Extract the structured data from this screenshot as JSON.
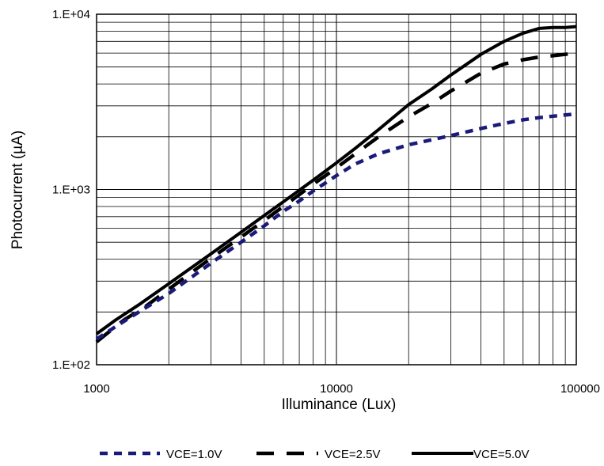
{
  "chart_data": {
    "type": "line",
    "xlabel": "Illuminance (Lux)",
    "ylabel": "Photocurrent (µA)",
    "x_scale": "log",
    "y_scale": "log",
    "xlim": [
      1000,
      100000
    ],
    "ylim": [
      100,
      10000
    ],
    "grid": true,
    "legend_position": "bottom",
    "x_tick_labels": [
      "1000",
      "10000",
      "100000"
    ],
    "x_tick_values": [
      1000,
      10000,
      100000
    ],
    "y_tick_labels": [
      "1.E+02",
      "1.E+03",
      "1.E+04"
    ],
    "y_tick_values": [
      100,
      1000,
      10000
    ],
    "series": [
      {
        "name": "VCE=1.0V",
        "color": "#1a1a7a",
        "dash": "short",
        "x": [
          1000,
          1200,
          1500,
          2000,
          3000,
          4000,
          5000,
          6000,
          7000,
          8000,
          10000,
          12000,
          15000,
          20000,
          30000,
          40000,
          50000,
          60000,
          70000,
          80000,
          100000
        ],
        "y": [
          140,
          165,
          200,
          255,
          380,
          500,
          620,
          750,
          860,
          980,
          1200,
          1400,
          1600,
          1800,
          2030,
          2230,
          2380,
          2500,
          2570,
          2620,
          2700
        ]
      },
      {
        "name": "VCE=2.5V",
        "color": "#000000",
        "dash": "long",
        "x": [
          1000,
          1100,
          1300,
          1600,
          2000,
          3000,
          4000,
          5000,
          6000,
          7000,
          8000,
          10000,
          12000,
          15000,
          20000,
          25000,
          30000,
          40000,
          50000,
          60000,
          70000,
          80000,
          100000
        ],
        "y": [
          135,
          150,
          180,
          215,
          270,
          405,
          535,
          665,
          800,
          935,
          1070,
          1330,
          1600,
          2000,
          2600,
          3100,
          3650,
          4600,
          5200,
          5500,
          5700,
          5800,
          6000
        ]
      },
      {
        "name": "VCE=5.0V",
        "color": "#000000",
        "dash": "solid",
        "x": [
          1000,
          1200,
          1500,
          2000,
          3000,
          4000,
          5000,
          6000,
          7000,
          8000,
          10000,
          12000,
          15000,
          20000,
          25000,
          30000,
          40000,
          50000,
          60000,
          70000,
          80000,
          90000,
          100000
        ],
        "y": [
          150,
          180,
          220,
          290,
          430,
          570,
          710,
          850,
          990,
          1130,
          1420,
          1720,
          2200,
          3050,
          3750,
          4500,
          5900,
          7000,
          7800,
          8300,
          8400,
          8400,
          8500
        ]
      }
    ]
  }
}
